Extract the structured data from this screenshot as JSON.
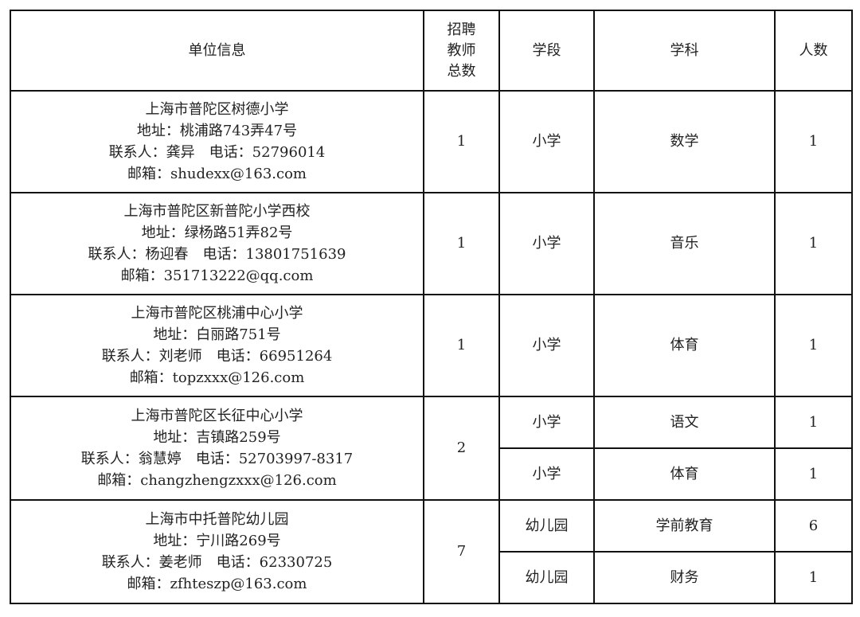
{
  "headers": {
    "unit": "单位信息",
    "total_lines": [
      "招聘",
      "教师",
      "总数"
    ],
    "stage": "学段",
    "subject": "学科",
    "count": "人数"
  },
  "rows": [
    {
      "name": "上海市普陀区树德小学",
      "address": "地址：桃浦路743弄47号",
      "contact": "联系人：龚异　电话：52796014",
      "email": "邮箱：shudexx@163.com",
      "total": "1",
      "positions": [
        {
          "stage": "小学",
          "subject": "数学",
          "count": "1"
        }
      ]
    },
    {
      "name": "上海市普陀区新普陀小学西校",
      "address": "地址：绿杨路51弄82号",
      "contact": "联系人：杨迎春　电话：13801751639",
      "email": "邮箱：351713222@qq.com",
      "total": "1",
      "positions": [
        {
          "stage": "小学",
          "subject": "音乐",
          "count": "1"
        }
      ]
    },
    {
      "name": "上海市普陀区桃浦中心小学",
      "address": "地址：白丽路751号",
      "contact": "联系人：刘老师　电话：66951264",
      "email": "邮箱：topzxxx@126.com",
      "total": "1",
      "positions": [
        {
          "stage": "小学",
          "subject": "体育",
          "count": "1"
        }
      ]
    },
    {
      "name": "上海市普陀区长征中心小学",
      "address": "地址：吉镇路259号",
      "contact": "联系人：翁慧婷　电话：52703997-8317",
      "email": "邮箱：changzhengzxxx@126.com",
      "total": "2",
      "positions": [
        {
          "stage": "小学",
          "subject": "语文",
          "count": "1"
        },
        {
          "stage": "小学",
          "subject": "体育",
          "count": "1"
        }
      ]
    },
    {
      "name": "上海市中托普陀幼儿园",
      "address": "地址：宁川路269号",
      "contact": "联系人：姜老师　电话：62330725",
      "email": "邮箱：zfhteszp@163.com",
      "total": "7",
      "positions": [
        {
          "stage": "幼儿园",
          "subject": "学前教育",
          "count": "6"
        },
        {
          "stage": "幼儿园",
          "subject": "财务",
          "count": "1"
        }
      ]
    }
  ]
}
